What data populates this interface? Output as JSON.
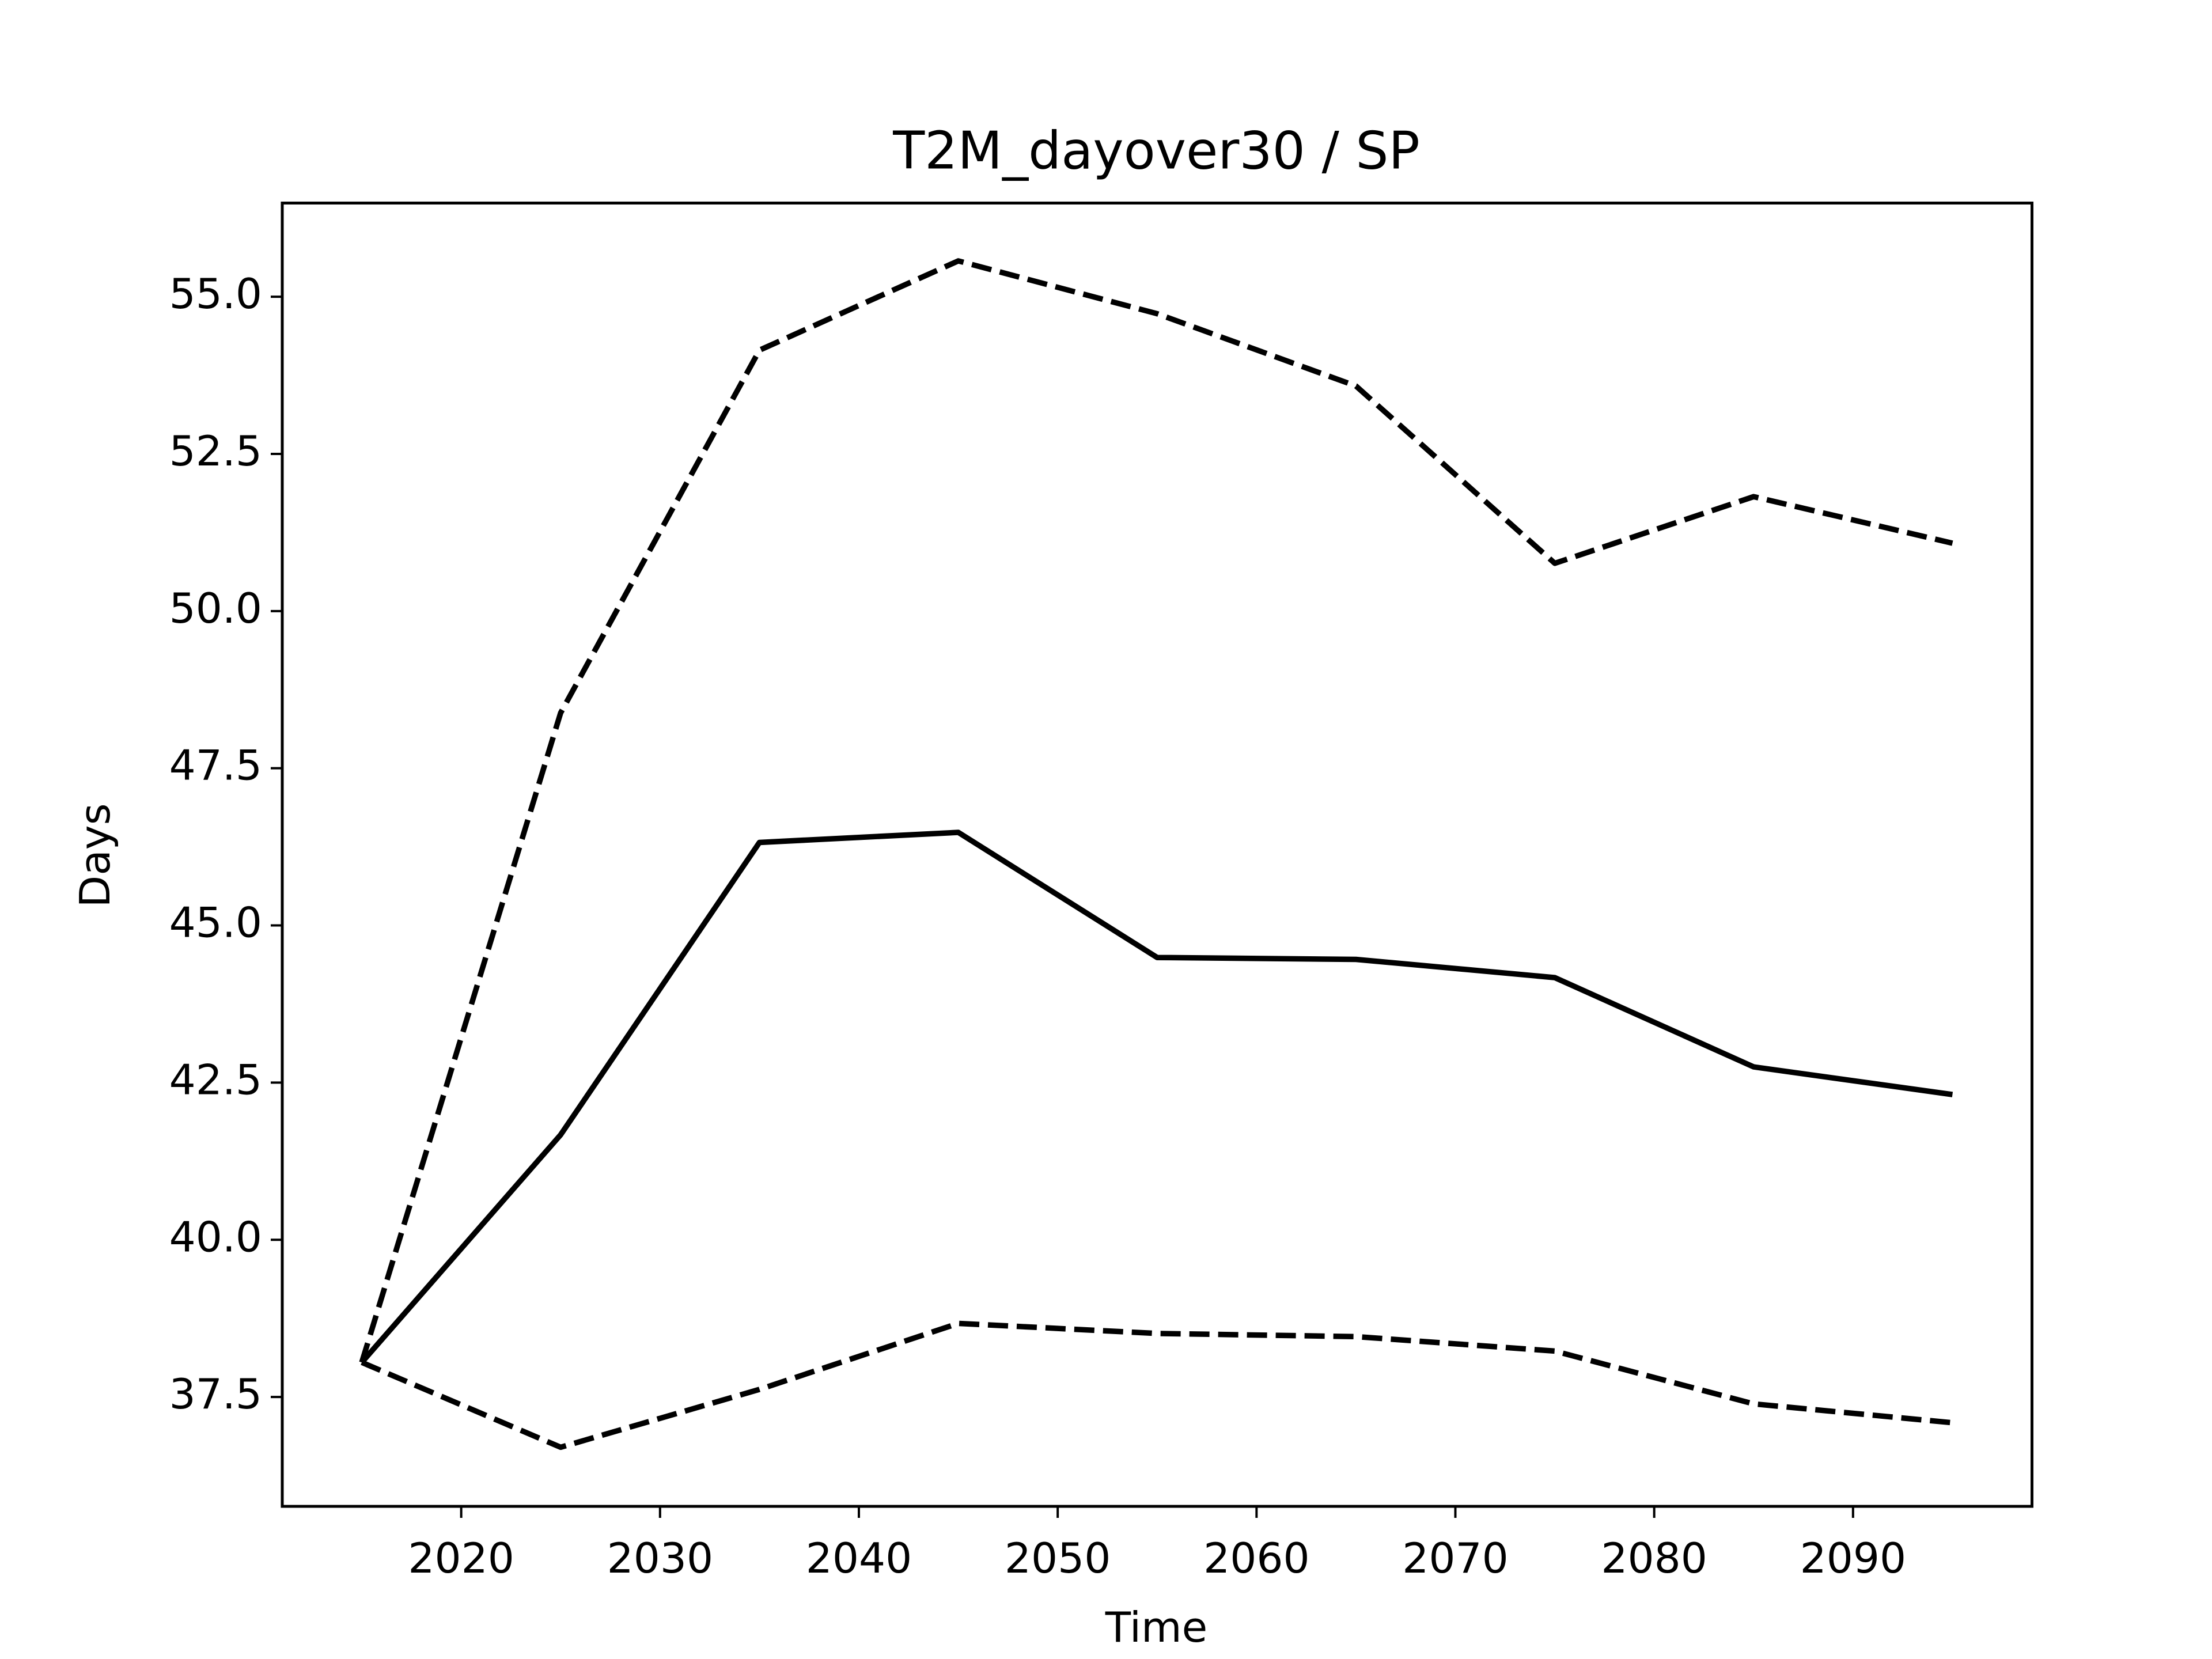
{
  "chart_data": {
    "type": "line",
    "title": "T2M_dayover30 / SP",
    "xlabel": "Time",
    "ylabel": "Days",
    "x": [
      2015,
      2025,
      2035,
      2045,
      2055,
      2065,
      2075,
      2085,
      2095
    ],
    "series": [
      {
        "color": "#000000",
        "dash": false,
        "values": [
          38.05,
          41.67,
          46.32,
          46.48,
          44.49,
          44.46,
          44.17,
          42.75,
          42.31
        ]
      },
      {
        "color": "#000000",
        "dash": true,
        "values": [
          38.05,
          48.38,
          54.15,
          55.57,
          54.73,
          53.58,
          50.76,
          51.82,
          51.08
        ]
      },
      {
        "color": "#000000",
        "dash": true,
        "values": [
          38.05,
          36.7,
          37.62,
          38.67,
          38.51,
          38.46,
          38.23,
          37.39,
          37.09
        ]
      }
    ],
    "xlim": [
      2011,
      2099
    ],
    "ylim": [
      35.76,
      56.49
    ],
    "xticks": [
      2020,
      2030,
      2040,
      2050,
      2060,
      2070,
      2080,
      2090
    ],
    "yticks": [
      {
        "value": 37.5,
        "label": "37.5"
      },
      {
        "value": 40,
        "label": "40.0"
      },
      {
        "value": 42.5,
        "label": "42.5"
      },
      {
        "value": 45,
        "label": "45.0"
      },
      {
        "value": 47.5,
        "label": "47.5"
      },
      {
        "value": 50,
        "label": "50.0"
      },
      {
        "value": 52.5,
        "label": "52.5"
      },
      {
        "value": 55,
        "label": "55.0"
      }
    ],
    "grid": false
  }
}
